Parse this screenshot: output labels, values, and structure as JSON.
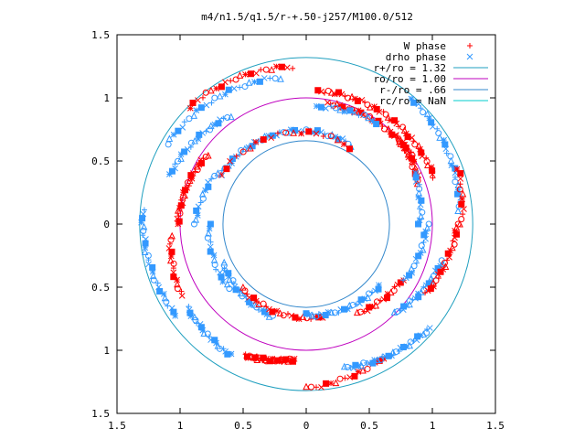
{
  "chart_data": {
    "type": "scatter",
    "title": "m4/n1.5/q1.5/r-+.50-j257/M100.0/512",
    "xlim": [
      -1.5,
      1.5
    ],
    "ylim": [
      -1.5,
      1.5
    ],
    "x_ticks": [
      -1.5,
      -1,
      -0.5,
      0,
      0.5,
      1,
      1.5
    ],
    "y_ticks": [
      1.5,
      1,
      0.5,
      0,
      -0.5,
      -1,
      -1.5
    ],
    "x_tick_labels": [
      "1.5",
      "1",
      "0.5",
      "0",
      "0.5",
      "1",
      "1.5"
    ],
    "y_tick_labels": [
      "1.5",
      "1",
      "0.5",
      "0",
      "0.5",
      "1",
      "1.5"
    ],
    "grid": false,
    "legend_position": "top-right",
    "series": [
      {
        "name": "W phase",
        "marker": "plus",
        "color": "#ff0000"
      },
      {
        "name": "drho phase",
        "marker": "x",
        "color": "#3399ff"
      },
      {
        "name": "r+/ro = 1.32",
        "kind": "circle",
        "radius": 1.32,
        "color": "#1f9fbf"
      },
      {
        "name": "ro/ro = 1.00",
        "kind": "circle",
        "radius": 1.0,
        "color": "#bf00bf"
      },
      {
        "name": "r-/ro = .66",
        "kind": "circle",
        "radius": 0.66,
        "color": "#3388cc"
      },
      {
        "name": "rc/ro = NaN",
        "kind": "circle",
        "radius": null,
        "color": "#00cccc"
      }
    ],
    "point_arcs": [
      {
        "r0": 1.25,
        "r1": 1.31,
        "a0": 95,
        "a1": 135,
        "color": "#ff0000",
        "n": 22
      },
      {
        "r0": 1.18,
        "r1": 1.27,
        "a0": 100,
        "a1": 150,
        "color": "#3399ff",
        "n": 26
      },
      {
        "r0": 1.08,
        "r1": 1.06,
        "a0": 20,
        "a1": 85,
        "color": "#ff0000",
        "n": 45
      },
      {
        "r0": 1.0,
        "r1": 0.97,
        "a0": 30,
        "a1": 80,
        "color": "#ff0000",
        "n": 35
      },
      {
        "r0": 0.98,
        "r1": 0.93,
        "a0": 55,
        "a1": 85,
        "color": "#3399ff",
        "n": 14
      },
      {
        "r0": 1.22,
        "r1": 1.3,
        "a0": 5,
        "a1": 50,
        "color": "#3399ff",
        "n": 30
      },
      {
        "r0": 1.23,
        "r1": 1.28,
        "a0": 0,
        "a1": 20,
        "color": "#ff0000",
        "n": 12
      },
      {
        "r0": 0.95,
        "r1": 1.0,
        "a0": 20,
        "a1": 45,
        "color": "#ff0000",
        "n": 22
      },
      {
        "r0": 0.9,
        "r1": 0.95,
        "a0": 0,
        "a1": 25,
        "color": "#3399ff",
        "n": 14
      },
      {
        "r0": 0.72,
        "r1": 0.78,
        "a0": 60,
        "a1": 150,
        "color": "#3399ff",
        "n": 40
      },
      {
        "r0": 0.7,
        "r1": 0.78,
        "a0": 60,
        "a1": 150,
        "color": "#ff0000",
        "n": 20
      },
      {
        "r0": 1.05,
        "r1": 1.15,
        "a0": 125,
        "a1": 160,
        "color": "#3399ff",
        "n": 24
      },
      {
        "r0": 0.96,
        "r1": 1.02,
        "a0": 145,
        "a1": 180,
        "color": "#ff0000",
        "n": 30
      },
      {
        "r0": 0.82,
        "r1": 0.88,
        "a0": 150,
        "a1": 180,
        "color": "#3399ff",
        "n": 14
      },
      {
        "r0": 1.3,
        "r1": 1.26,
        "a0": 175,
        "a1": 215,
        "color": "#3399ff",
        "n": 28
      },
      {
        "r0": 1.08,
        "r1": 1.14,
        "a0": 185,
        "a1": 210,
        "color": "#ff0000",
        "n": 16
      },
      {
        "r0": 0.77,
        "r1": 0.8,
        "a0": 180,
        "a1": 220,
        "color": "#3399ff",
        "n": 16
      },
      {
        "r0": 1.15,
        "r1": 1.2,
        "a0": 215,
        "a1": 240,
        "color": "#3399ff",
        "n": 22
      },
      {
        "r0": 0.73,
        "r1": 0.78,
        "a0": 205,
        "a1": 250,
        "color": "#3399ff",
        "n": 26
      },
      {
        "r0": 1.15,
        "r1": 1.08,
        "a0": 245,
        "a1": 265,
        "color": "#ff0000",
        "n": 40
      },
      {
        "r0": 0.72,
        "r1": 0.75,
        "a0": 225,
        "a1": 280,
        "color": "#ff0000",
        "n": 24
      },
      {
        "r0": 1.3,
        "r1": 1.22,
        "a0": 270,
        "a1": 300,
        "color": "#ff0000",
        "n": 18
      },
      {
        "r0": 1.18,
        "r1": 1.28,
        "a0": 285,
        "a1": 320,
        "color": "#3399ff",
        "n": 34
      },
      {
        "r0": 0.72,
        "r1": 0.76,
        "a0": 270,
        "a1": 320,
        "color": "#3399ff",
        "n": 26
      },
      {
        "r0": 0.82,
        "r1": 0.88,
        "a0": 300,
        "a1": 330,
        "color": "#ff0000",
        "n": 18
      },
      {
        "r0": 1.0,
        "r1": 1.12,
        "a0": 315,
        "a1": 345,
        "color": "#3399ff",
        "n": 26
      },
      {
        "r0": 1.1,
        "r1": 1.2,
        "a0": 330,
        "a1": 360,
        "color": "#ff0000",
        "n": 24
      },
      {
        "r0": 0.9,
        "r1": 0.96,
        "a0": 330,
        "a1": 360,
        "color": "#3399ff",
        "n": 18
      }
    ]
  }
}
